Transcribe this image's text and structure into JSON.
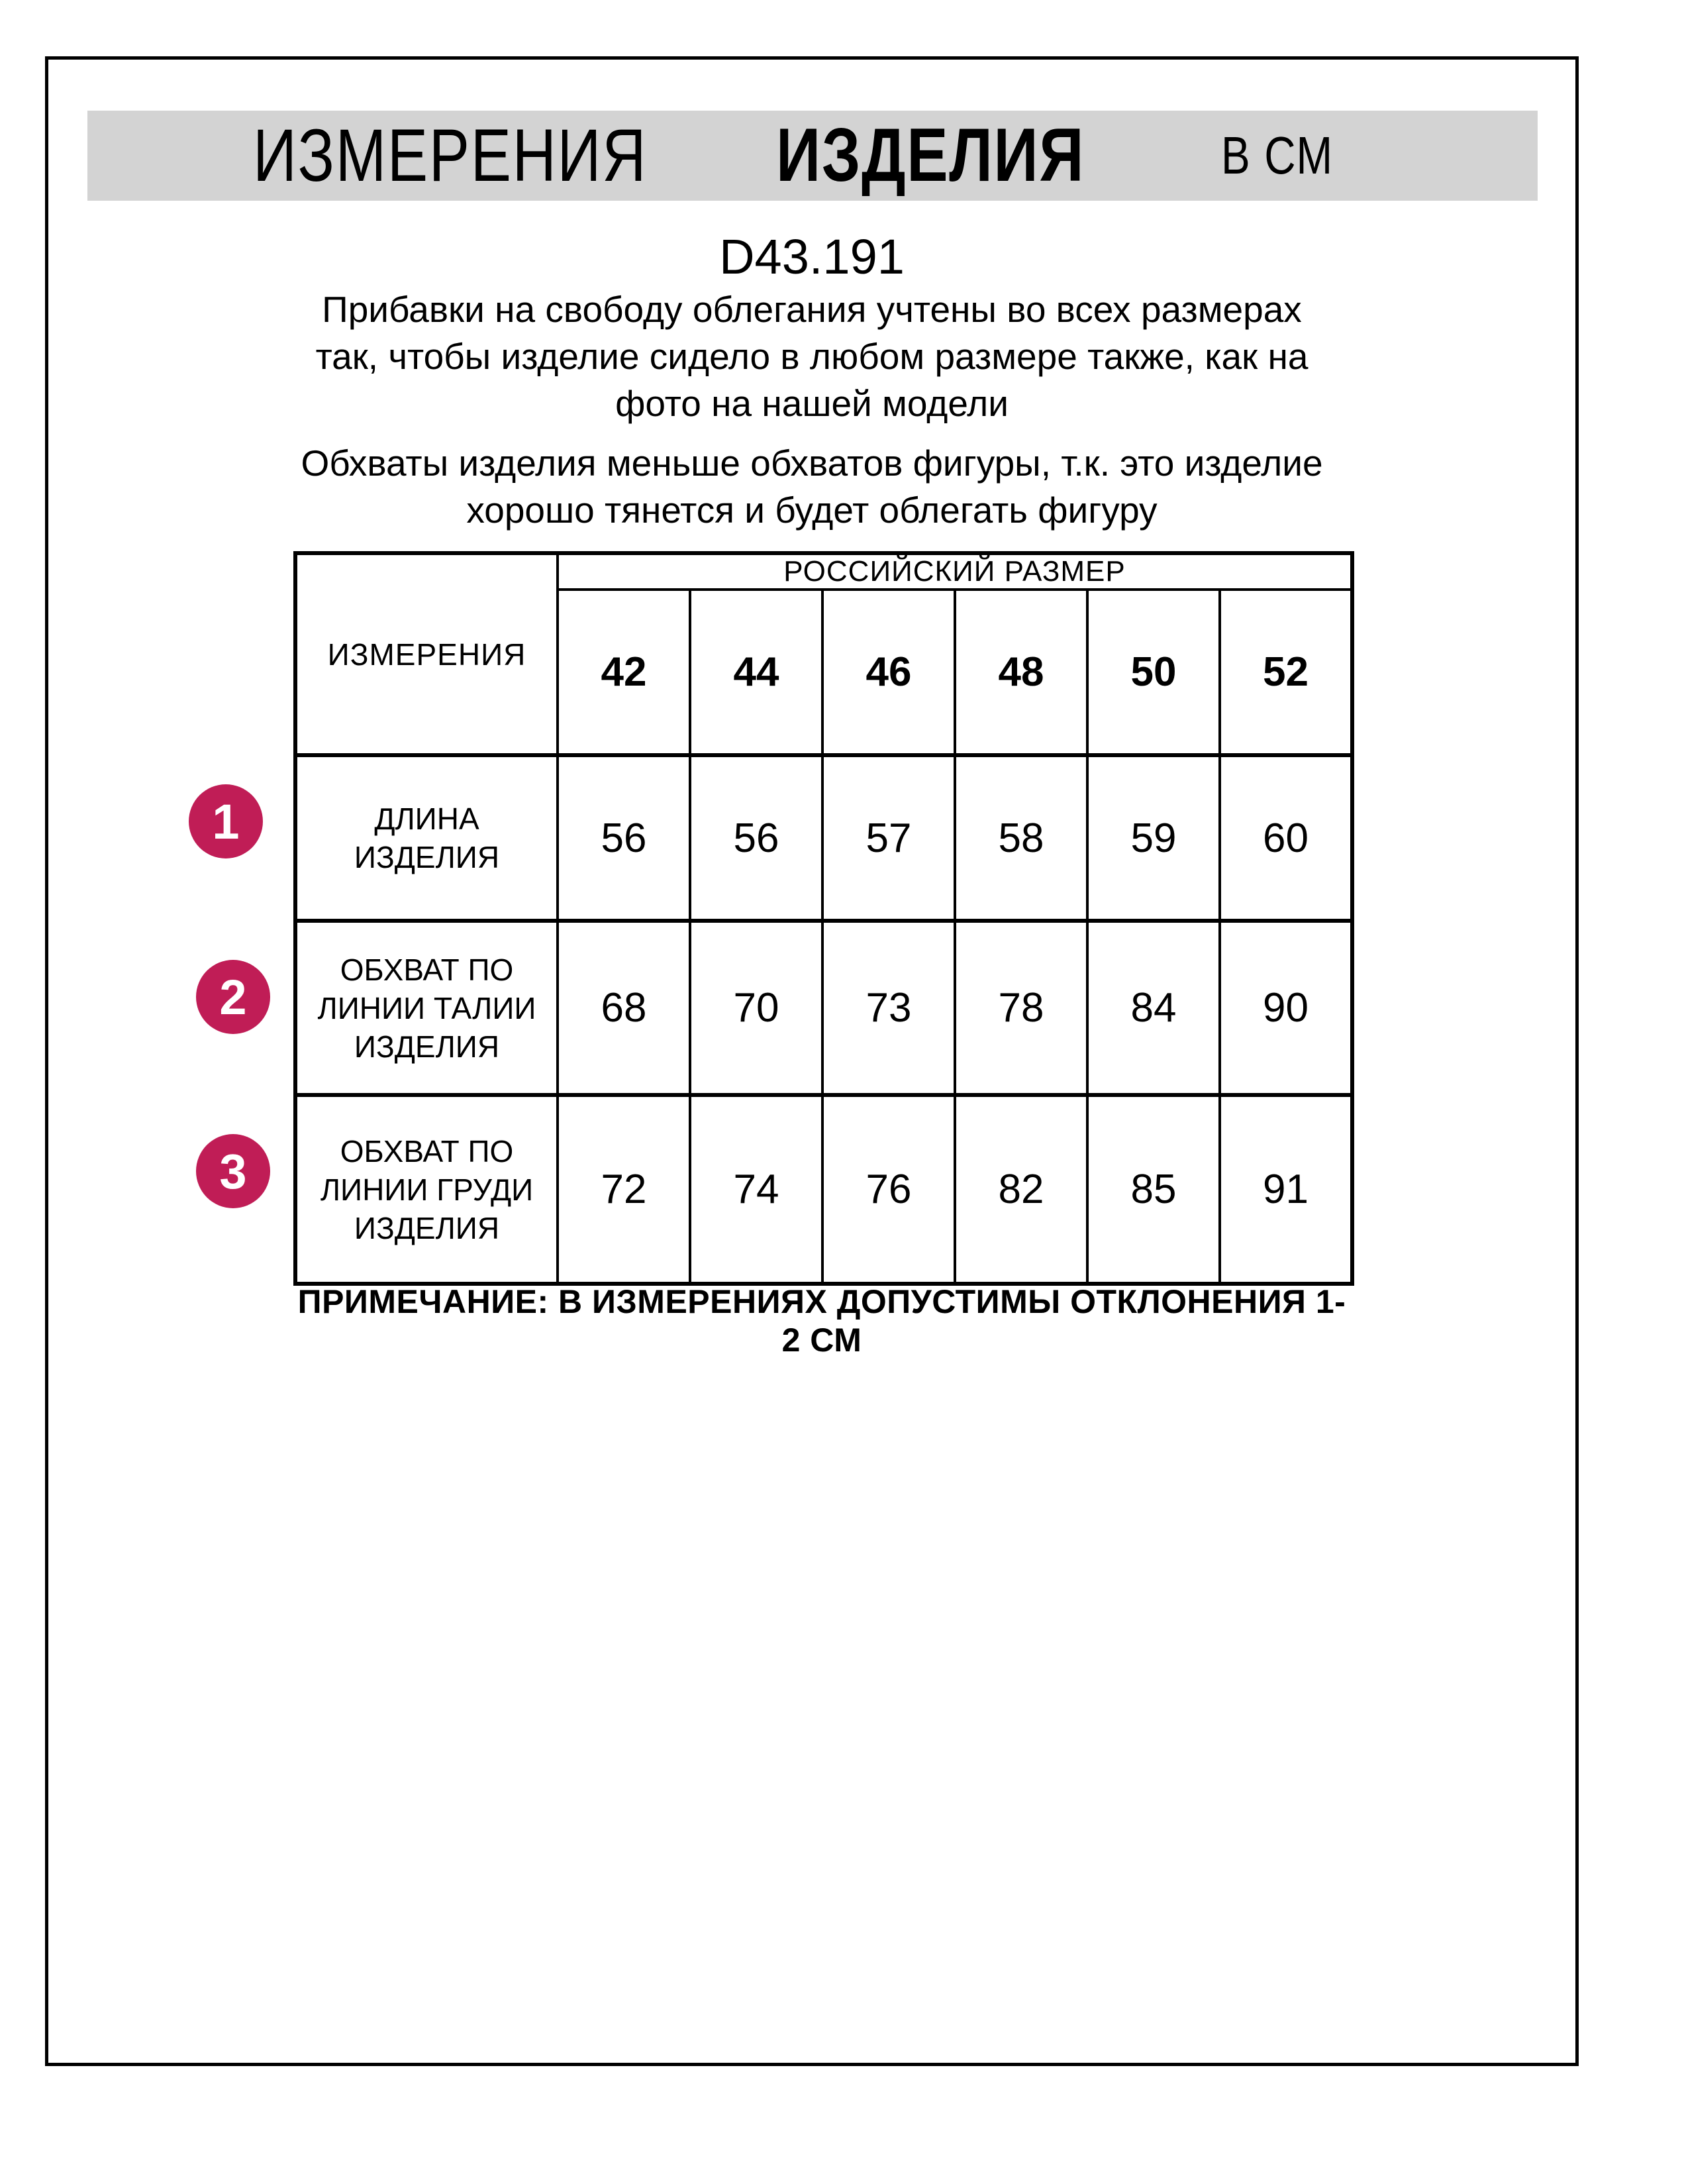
{
  "page": {
    "header": {
      "title_main": "ИЗМЕРЕНИЯ",
      "title_bold": "ИЗДЕЛИЯ",
      "title_unit": "В СМ"
    },
    "product_code": "D43.191",
    "intro": [
      {
        "lines": [
          "Прибавки на свободу облегания учтены во всех размерах",
          "так, чтобы изделие сидело в любом размере также, как на",
          "фото на нашей модели"
        ]
      },
      {
        "lines": [
          "Обхваты изделия меньше обхватов фигуры, т.к. это изделие",
          "хорошо тянется и будет облегать фигуру"
        ]
      }
    ],
    "note": "ПРИМЕЧАНИЕ: В ИЗМЕРЕНИЯХ ДОПУСТИМЫ ОТКЛОНЕНИЯ 1-2 СМ"
  },
  "size_table": {
    "measurements_header": "ИЗМЕРЕНИЯ",
    "size_group_header": "РОССИЙСКИЙ РАЗМЕР",
    "sizes": [
      "42",
      "44",
      "46",
      "48",
      "50",
      "52"
    ],
    "rows": [
      {
        "num": "1",
        "label_lines": [
          "ДЛИНА ИЗДЕЛИЯ"
        ],
        "values": [
          "56",
          "56",
          "57",
          "58",
          "59",
          "60"
        ]
      },
      {
        "num": "2",
        "label_lines": [
          "ОБХВАТ ПО",
          "ЛИНИИ ТАЛИИ",
          "ИЗДЕЛИЯ"
        ],
        "values": [
          "68",
          "70",
          "73",
          "78",
          "84",
          "90"
        ]
      },
      {
        "num": "3",
        "label_lines": [
          "ОБХВАТ ПО",
          "ЛИНИИ ГРУДИ",
          "ИЗДЕЛИЯ"
        ],
        "values": [
          "72",
          "74",
          "76",
          "82",
          "85",
          "91"
        ]
      }
    ]
  },
  "colors": {
    "accent_circle": "#c01d56",
    "header_bar_bg": "#d3d3d3",
    "border": "#000000"
  }
}
